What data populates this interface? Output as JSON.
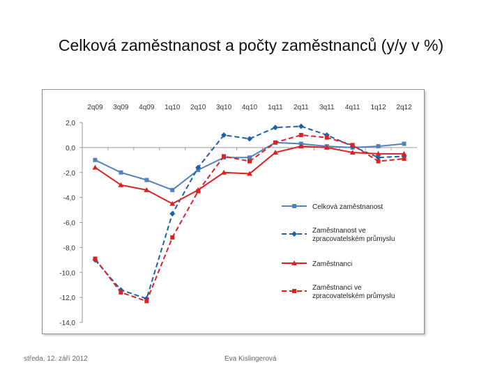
{
  "slide": {
    "title": "Celková zaměstnanost a počty zaměstnanců (y/y v %)",
    "footer_date": "středa, 12. září 2012",
    "footer_author": "Eva Kislingerová"
  },
  "chart_data": {
    "type": "line",
    "title": "",
    "xlabel": "",
    "ylabel": "",
    "categories": [
      "2q09",
      "3q09",
      "4q09",
      "1q10",
      "2q10",
      "3q10",
      "4q10",
      "1q11",
      "2q11",
      "3q11",
      "4q11",
      "1q12",
      "2q12"
    ],
    "y_ticks": [
      "2,0",
      "0,0",
      "-2,0",
      "-4,0",
      "-6,0",
      "-8,0",
      "-10,0",
      "-12,0",
      "-14,0"
    ],
    "ylim": [
      -14,
      2
    ],
    "legend_position": "right",
    "series": [
      {
        "name": "Celková zaměstnanost",
        "color": "#4f81bd",
        "dash": "solid",
        "marker": "square",
        "values": [
          -1.0,
          -2.0,
          -2.6,
          -3.4,
          -1.8,
          -0.8,
          -0.8,
          0.4,
          0.3,
          0.1,
          0.0,
          0.1,
          0.3
        ]
      },
      {
        "name": "Zaměstnanost ve zpracovatelském průmyslu",
        "color": "#1f5fa8",
        "dash": "dashed",
        "marker": "diamond",
        "values": [
          -9.0,
          -11.4,
          -12.1,
          -5.3,
          -1.6,
          1.0,
          0.7,
          1.6,
          1.7,
          1.0,
          0.1,
          -0.8,
          -0.7
        ]
      },
      {
        "name": "Zaměstnanci",
        "color": "#e02020",
        "dash": "solid",
        "marker": "triangle",
        "values": [
          -1.6,
          -3.0,
          -3.4,
          -4.5,
          -3.4,
          -2.0,
          -2.1,
          -0.4,
          0.1,
          0.0,
          -0.4,
          -0.5,
          -0.5
        ]
      },
      {
        "name": "Zaměstnanci ve zpracovatelském průmyslu",
        "color": "#e02020",
        "dash": "dashed",
        "marker": "square",
        "values": [
          -8.9,
          -11.6,
          -12.3,
          -7.2,
          -3.5,
          -0.7,
          -1.1,
          0.4,
          1.0,
          0.8,
          0.2,
          -1.1,
          -0.9
        ]
      }
    ]
  }
}
